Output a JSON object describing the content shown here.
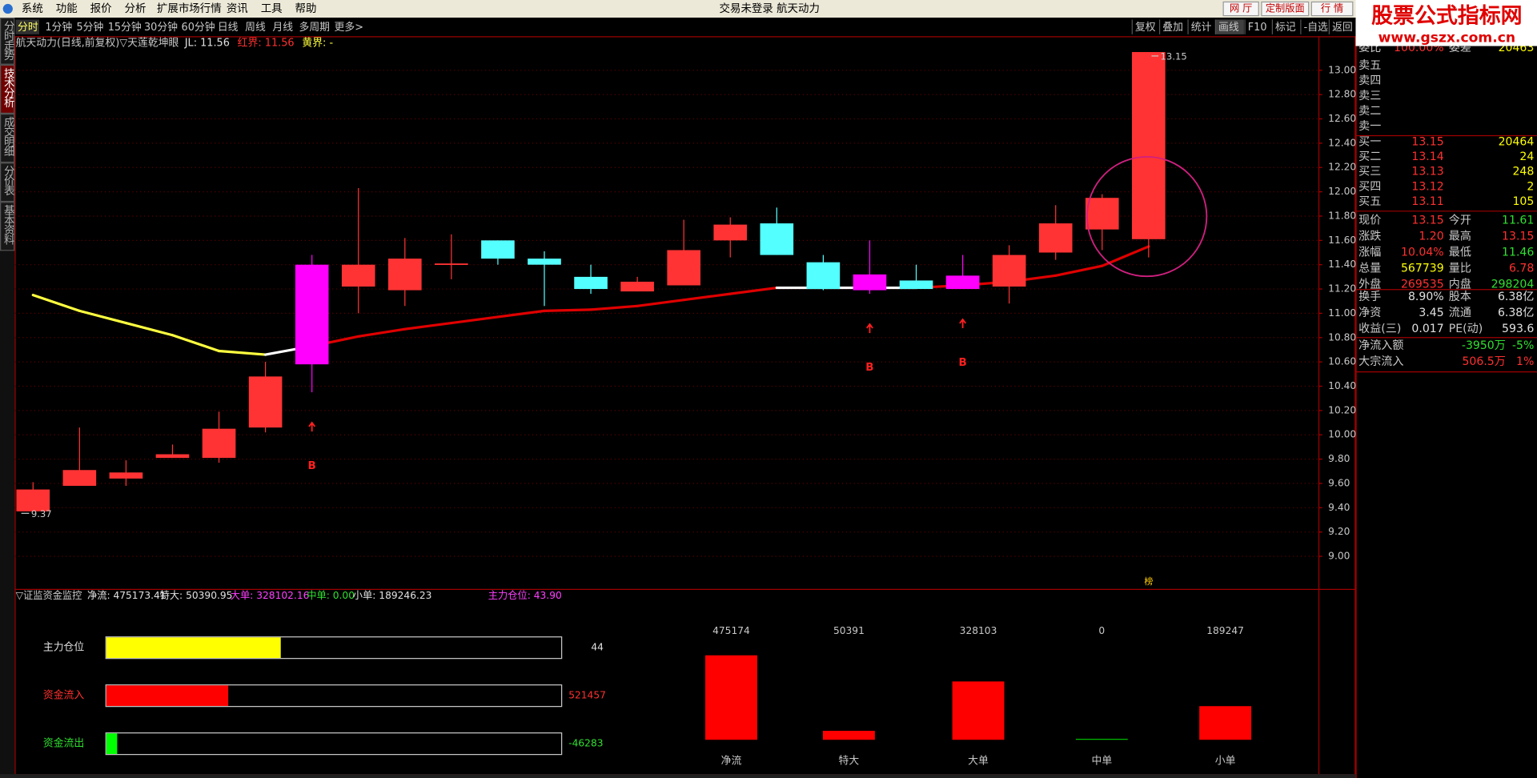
{
  "menu": [
    "系统",
    "功能",
    "报价",
    "分析",
    "扩展市场行情",
    "资讯",
    "工具",
    "帮助"
  ],
  "window_title": "交易未登录 航天动力",
  "top_buttons": [
    "网 厅",
    "定制版面",
    "行 情"
  ],
  "watermark": {
    "title": "股票公式指标网",
    "url": "www.gszx.com.cn"
  },
  "period_tabs": [
    "分时",
    "1分钟",
    "5分钟",
    "15分钟",
    "30分钟",
    "60分钟",
    "日线",
    "周线",
    "月线",
    "多周期",
    "更多>"
  ],
  "tool_buttons": [
    "复权",
    "叠加",
    "统计",
    "画线",
    "F10",
    "标记",
    "-自选",
    "返回"
  ],
  "side_tabs": [
    "分时走势",
    "技术分析",
    "成交明细",
    "分价表",
    "基本资料"
  ],
  "chart_data": [
    {
      "type": "candlestick",
      "title": "航天动力(日线,前复权)▽天莲乾坤眼",
      "header": [
        {
          "text": "JL: 11.56",
          "color": "#e0e0e0"
        },
        {
          "text": "红界: 11.56",
          "color": "#ff3030"
        },
        {
          "text": "黄界: -",
          "color": "#ffff40"
        }
      ],
      "open": [
        9.37,
        9.58,
        9.64,
        9.81,
        9.81,
        10.06,
        10.58,
        11.22,
        11.19,
        11.4,
        11.6,
        11.45,
        11.3,
        11.18,
        11.23,
        11.6,
        11.74,
        11.42,
        11.19,
        11.27,
        11.2,
        11.22,
        11.5,
        11.69,
        11.61
      ],
      "high": [
        9.61,
        10.06,
        9.79,
        9.92,
        10.19,
        10.6,
        11.48,
        12.03,
        11.62,
        11.65,
        11.6,
        11.51,
        11.4,
        11.3,
        11.77,
        11.79,
        11.87,
        11.48,
        11.6,
        11.4,
        11.48,
        11.56,
        11.89,
        11.98,
        13.15
      ],
      "low": [
        9.37,
        9.58,
        9.58,
        9.81,
        9.77,
        10.02,
        10.35,
        11.0,
        11.06,
        11.28,
        11.4,
        11.06,
        11.16,
        11.18,
        11.23,
        11.46,
        11.48,
        11.19,
        11.16,
        11.2,
        11.2,
        11.08,
        11.44,
        11.52,
        11.46
      ],
      "close": [
        9.55,
        9.71,
        9.69,
        9.84,
        10.05,
        10.48,
        11.4,
        11.4,
        11.45,
        11.41,
        11.45,
        11.4,
        11.2,
        11.26,
        11.52,
        11.73,
        11.48,
        11.2,
        11.32,
        11.2,
        11.31,
        11.48,
        11.74,
        11.95,
        13.15
      ],
      "colors": [
        "#ff3333",
        "#ff3333",
        "#ff3333",
        "#ff3333",
        "#ff3333",
        "#ff3333",
        "#ff00ff",
        "#ff3333",
        "#ff3333",
        "#ff3333",
        "#54ffff",
        "#54ffff",
        "#54ffff",
        "#ff3333",
        "#ff3333",
        "#ff3333",
        "#54ffff",
        "#54ffff",
        "#ff00ff",
        "#54ffff",
        "#ff00ff",
        "#ff3333",
        "#ff3333",
        "#ff3333",
        "#ff3333"
      ],
      "line": {
        "values": [
          11.15,
          11.02,
          10.92,
          10.82,
          10.69,
          10.66,
          10.73,
          10.81,
          10.87,
          10.92,
          10.97,
          11.02,
          11.03,
          11.06,
          11.11,
          11.16,
          11.21,
          11.21,
          11.21,
          11.21,
          11.23,
          11.26,
          11.31,
          11.39,
          11.55
        ],
        "point_colors": [
          "#ffff40",
          "#ffff40",
          "#ffff40",
          "#ffff40",
          "#ffff40",
          "#ffffff",
          "#e00000",
          "#e00000",
          "#e00000",
          "#e00000",
          "#e00000",
          "#e00000",
          "#e00000",
          "#e00000",
          "#e00000",
          "#e00000",
          "#ffffff",
          "#ffffff",
          "#ffffff",
          "#e00000",
          "#e00000",
          "#e00000",
          "#e00000",
          "#e00000",
          null
        ]
      },
      "signals": [
        null,
        null,
        null,
        null,
        null,
        null,
        "B",
        null,
        null,
        null,
        null,
        null,
        null,
        null,
        null,
        null,
        null,
        null,
        "B",
        null,
        "B",
        null,
        null,
        null,
        null
      ],
      "max_label": "13.15",
      "min_label": "9.37",
      "badge": "榜",
      "ylim": [
        8.74,
        13.28
      ],
      "yticks": [
        {
          "value": 9,
          "label": "9.00"
        },
        {
          "value": 9.2,
          "label": "9.20"
        },
        {
          "value": 9.4,
          "label": "9.40"
        },
        {
          "value": 9.6,
          "label": "9.60"
        },
        {
          "value": 9.8,
          "label": "9.80"
        },
        {
          "value": 10,
          "label": "10.00"
        },
        {
          "value": 10.2,
          "label": "10.20"
        },
        {
          "value": 10.4,
          "label": "10.40"
        },
        {
          "value": 10.6,
          "label": "10.60"
        },
        {
          "value": 10.8,
          "label": "10.80"
        },
        {
          "value": 11,
          "label": "11.00"
        },
        {
          "value": 11.2,
          "label": "11.20"
        },
        {
          "value": 11.4,
          "label": "11.40"
        },
        {
          "value": 11.6,
          "label": "11.60"
        },
        {
          "value": 11.8,
          "label": "11.80"
        },
        {
          "value": 12,
          "label": "12.00"
        },
        {
          "value": 12.2,
          "label": "12.20"
        },
        {
          "value": 12.4,
          "label": "12.40"
        },
        {
          "value": 12.6,
          "label": "12.60"
        },
        {
          "value": 12.8,
          "label": "12.80"
        },
        {
          "value": 13,
          "label": "13.00"
        }
      ],
      "grid": true
    },
    {
      "type": "hbar",
      "title": "▽证监资金监控",
      "header": [
        {
          "text": "净流: 475173.41",
          "color": "#e0e0e0"
        },
        {
          "text": "特大: 50390.95",
          "color": "#e0e0e0"
        },
        {
          "text": "大单: 328102.16",
          "color": "#ff40ff"
        },
        {
          "text": "中单: 0.00",
          "color": "#30e030"
        },
        {
          "text": "小单: 189246.23",
          "color": "#e0e0e0"
        },
        {
          "text": "主力仓位: 43.90",
          "color": "#ff40ff"
        }
      ],
      "categories": [
        "主力仓位",
        "资金流入",
        "资金流出"
      ],
      "values": [
        44,
        521457,
        -46283
      ],
      "colors": [
        "#ffff00",
        "#ff0000",
        "#00ff00"
      ],
      "text_colors": [
        "#e0e0e0",
        "#ff3030",
        "#30e030"
      ],
      "xlims": [
        [
          0,
          115
        ],
        [
          0,
          1950000
        ],
        [
          0,
          -1950000
        ]
      ]
    },
    {
      "type": "bar",
      "categories": [
        "净流",
        "特大",
        "大单",
        "中单",
        "小单"
      ],
      "values": [
        475174,
        50391,
        328103,
        0,
        189247
      ],
      "colors": [
        "#ff0000",
        "#ff0000",
        "#ff0000",
        "#00c000",
        "#ff0000"
      ],
      "ylim": [
        0,
        700000
      ]
    }
  ],
  "quote_panel": {
    "top": {
      "cells": [
        "委比",
        "100.00%",
        "委差",
        "20463"
      ],
      "colors": [
        "#c8c8c8",
        "#ff3030",
        "#c8c8c8",
        "#ffff00"
      ]
    },
    "asks": [
      "卖五",
      "卖四",
      "卖三",
      "卖二",
      "卖一"
    ],
    "bids": [
      [
        "买一",
        13.15,
        20464
      ],
      [
        "买二",
        13.14,
        24
      ],
      [
        "买三",
        13.13,
        248
      ],
      [
        "买四",
        13.12,
        2
      ],
      [
        "买五",
        13.11,
        105
      ]
    ],
    "bid_colors": [
      "#c8c8c8",
      "#ff3030",
      "#ffff00"
    ],
    "stats": [
      [
        {
          "cells": [
            "现价",
            13.15,
            "今开",
            11.61
          ],
          "colors": [
            "#c8c8c8",
            "#ff3030",
            "#c8c8c8",
            "#30e030"
          ]
        },
        {
          "cells": [
            "涨跌",
            "1.20",
            "最高",
            13.15
          ],
          "colors": [
            "#c8c8c8",
            "#ff3030",
            "#c8c8c8",
            "#ff3030"
          ]
        },
        {
          "cells": [
            "涨幅",
            "10.04%",
            "最低",
            11.46
          ],
          "colors": [
            "#c8c8c8",
            "#ff3030",
            "#c8c8c8",
            "#30e030"
          ]
        },
        {
          "cells": [
            "总量",
            567739,
            "量比",
            6.78
          ],
          "colors": [
            "#c8c8c8",
            "#ffff00",
            "#c8c8c8",
            "#ff3030"
          ]
        },
        {
          "cells": [
            "外盘",
            269535,
            "内盘",
            298204
          ],
          "colors": [
            "#c8c8c8",
            "#ff3030",
            "#c8c8c8",
            "#30e030"
          ]
        }
      ],
      [
        {
          "cells": [
            "换手",
            "8.90%",
            "股本",
            "6.38亿"
          ],
          "colors": [
            "#c8c8c8",
            "#e0e0e0",
            "#c8c8c8",
            "#e0e0e0"
          ]
        },
        {
          "cells": [
            "净资",
            3.45,
            "流通",
            "6.38亿"
          ],
          "colors": [
            "#c8c8c8",
            "#e0e0e0",
            "#c8c8c8",
            "#e0e0e0"
          ]
        },
        {
          "cells": [
            "收益(三)",
            0.017,
            "PE(动)",
            593.6
          ],
          "colors": [
            "#c8c8c8",
            "#e0e0e0",
            "#c8c8c8",
            "#e0e0e0"
          ]
        }
      ],
      [
        {
          "cells": [
            "净流入额",
            "-3950万",
            "-5%"
          ],
          "colors": [
            "#c8c8c8",
            "#30e030",
            "#30e030"
          ]
        },
        {
          "cells": [
            "大宗流入",
            "506.5万",
            "1%"
          ],
          "colors": [
            "#c8c8c8",
            "#ff3030",
            "#ff3030"
          ]
        }
      ]
    ]
  }
}
